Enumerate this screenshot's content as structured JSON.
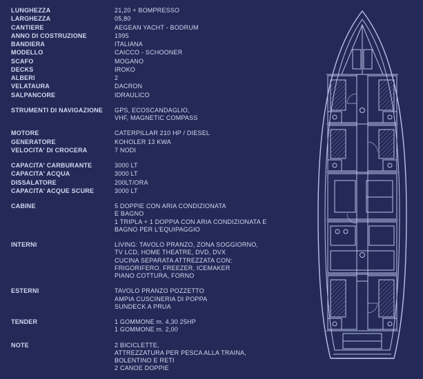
{
  "bg": "#232a57",
  "text_color": "#d2d8f0",
  "font_size_pt": 9,
  "sections": [
    {
      "gap_before": 0,
      "rows": [
        {
          "label": "LUNGHEZZA",
          "value": "21,20 + BOMPRESSO"
        },
        {
          "label": "LARGHEZZA",
          "value": "05,80"
        },
        {
          "label": "CANTIERE",
          "value": "AEGEAN YACHT - BODRUM"
        },
        {
          "label": "ANNO DI COSTRUZIONE",
          "value": "1995"
        },
        {
          "label": "BANDIERA",
          "value": "ITALIANA"
        },
        {
          "label": "MODELLO",
          "value": "CAICCO - SCHOONER"
        },
        {
          "label": "SCAFO",
          "value": "MOGANO"
        },
        {
          "label": "DECKS",
          "value": "IROKO"
        },
        {
          "label": "ALBERI",
          "value": "2"
        },
        {
          "label": "VELATAURA",
          "value": "DACRON"
        },
        {
          "label": "SALPANCORE",
          "value": "IDRAULICO"
        }
      ]
    },
    {
      "gap_before": 1,
      "rows": [
        {
          "label": "STRUMENTI DI NAVIGAZIONE",
          "value": "GPS, ECOSCANDAGLIO,\nVHF, MAGNETIC COMPASS"
        }
      ]
    },
    {
      "gap_before": 1,
      "rows": [
        {
          "label": "MOTORE",
          "value": "CATERPILLAR 210 HP / DIESEL"
        },
        {
          "label": "GENERATORE",
          "value": "KOHOLER 13 KWA"
        },
        {
          "label": "VELOCITA' DI CROCERA",
          "value": "7 NODI"
        }
      ]
    },
    {
      "gap_before": 1,
      "rows": [
        {
          "label": "CAPACITA' CARBURANTE",
          "value": "3000 LT"
        },
        {
          "label": "CAPACITA' ACQUA",
          "value": "3000 LT"
        },
        {
          "label": "DISSALATORE",
          "value": "200LT/ORA"
        },
        {
          "label": "CAPACITA' ACQUE SCURE",
          "value": "3000 LT"
        }
      ]
    },
    {
      "gap_before": 1,
      "rows": [
        {
          "label": "CABINE",
          "value": "5 DOPPIE CON ARIA CONDIZIONATA\nE BAGNO\n1 TRIPLA + 1 DOPPIA CON ARIA CONDIZIONATA E\nBAGNO PER L'EQUIPAGGIO"
        }
      ]
    },
    {
      "gap_before": 1,
      "rows": [
        {
          "label": "INTERNI",
          "value": "LIVING: TAVOLO PRANZO, ZONA SOGGIORNO,\nTV  LCD, HOME THEATRE, DVD, DVX\nCUCINA SEPARATA ATTREZZATA CON:\nFRIGORIFERO, FREEZER, ICEMAKER\nPIANO COTTURA, FORNO"
        }
      ]
    },
    {
      "gap_before": 1,
      "rows": [
        {
          "label": "ESTERNI",
          "value": "TAVOLO PRANZO POZZETTO\nAMPIA CUSCINERIA DI POPPA\nSUNDECK A PRUA"
        }
      ]
    },
    {
      "gap_before": 1,
      "rows": [
        {
          "label": "TENDER",
          "value": "1 GOMMONE   m. 4,30    25HP\n1 GOMMONE   m. 2,00"
        }
      ]
    },
    {
      "gap_before": 1,
      "rows": [
        {
          "label": "NOTE",
          "value": "2 BICICLETTE,\nATTREZZATURA PER PESCA ALLA TRAINA,\nBOLENTINO E RETI\n2 CANOE DOPPIE"
        }
      ]
    }
  ],
  "diagram": {
    "stroke": "#b9c2ea",
    "fill_light": "#3a4278",
    "fill_mid": "#2c3466"
  }
}
